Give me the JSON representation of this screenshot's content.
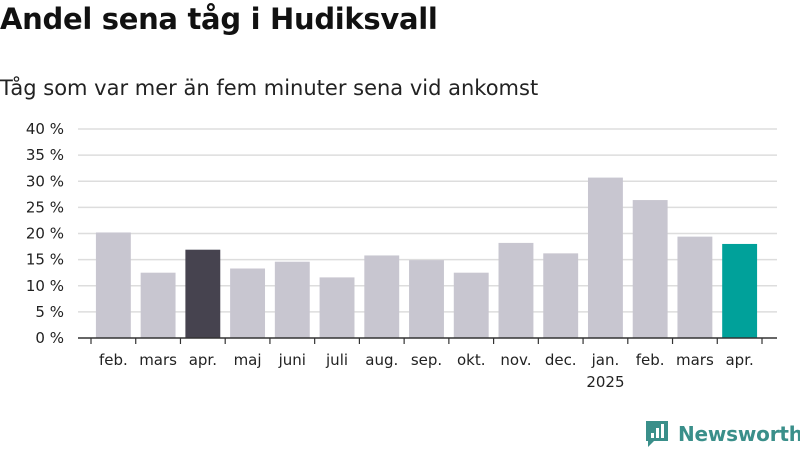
{
  "title": "Andel sena tåg i Hudiksvall",
  "subtitle": "Tåg som var mer än fem minuter sena vid ankomst",
  "brand": {
    "name": "Newsworthy",
    "icon": "newsworthy-logo-icon",
    "color": "#3a8f8a"
  },
  "chart_data": {
    "type": "bar",
    "title": "Andel sena tåg i Hudiksvall",
    "subtitle": "Tåg som var mer än fem minuter sena vid ankomst",
    "categories": [
      "feb.",
      "mars",
      "apr.",
      "maj",
      "juni",
      "juli",
      "aug.",
      "sep.",
      "okt.",
      "nov.",
      "dec.",
      "jan.",
      "feb.",
      "mars",
      "apr."
    ],
    "year_labels": [
      {
        "index": 11,
        "label": "2025"
      }
    ],
    "values": [
      20.2,
      12.5,
      16.9,
      13.3,
      14.6,
      11.6,
      15.8,
      14.9,
      12.5,
      18.2,
      16.2,
      30.7,
      26.4,
      19.4,
      18.0
    ],
    "ylim": [
      0,
      40
    ],
    "yticks": [
      0,
      5,
      10,
      15,
      20,
      25,
      30,
      35,
      40
    ],
    "ytick_labels": [
      "0 %",
      "5 %",
      "10 %",
      "15 %",
      "20 %",
      "25 %",
      "30 %",
      "35 %",
      "40 %"
    ],
    "grid": true,
    "colors": {
      "default_bar": "#c8c6d0",
      "highlight_previous_year": "#46434f",
      "highlight_latest": "#00a19a",
      "grid": "#dddddd",
      "axis": "#333333"
    },
    "highlight": {
      "2": "highlight_previous_year",
      "14": "highlight_latest"
    }
  }
}
